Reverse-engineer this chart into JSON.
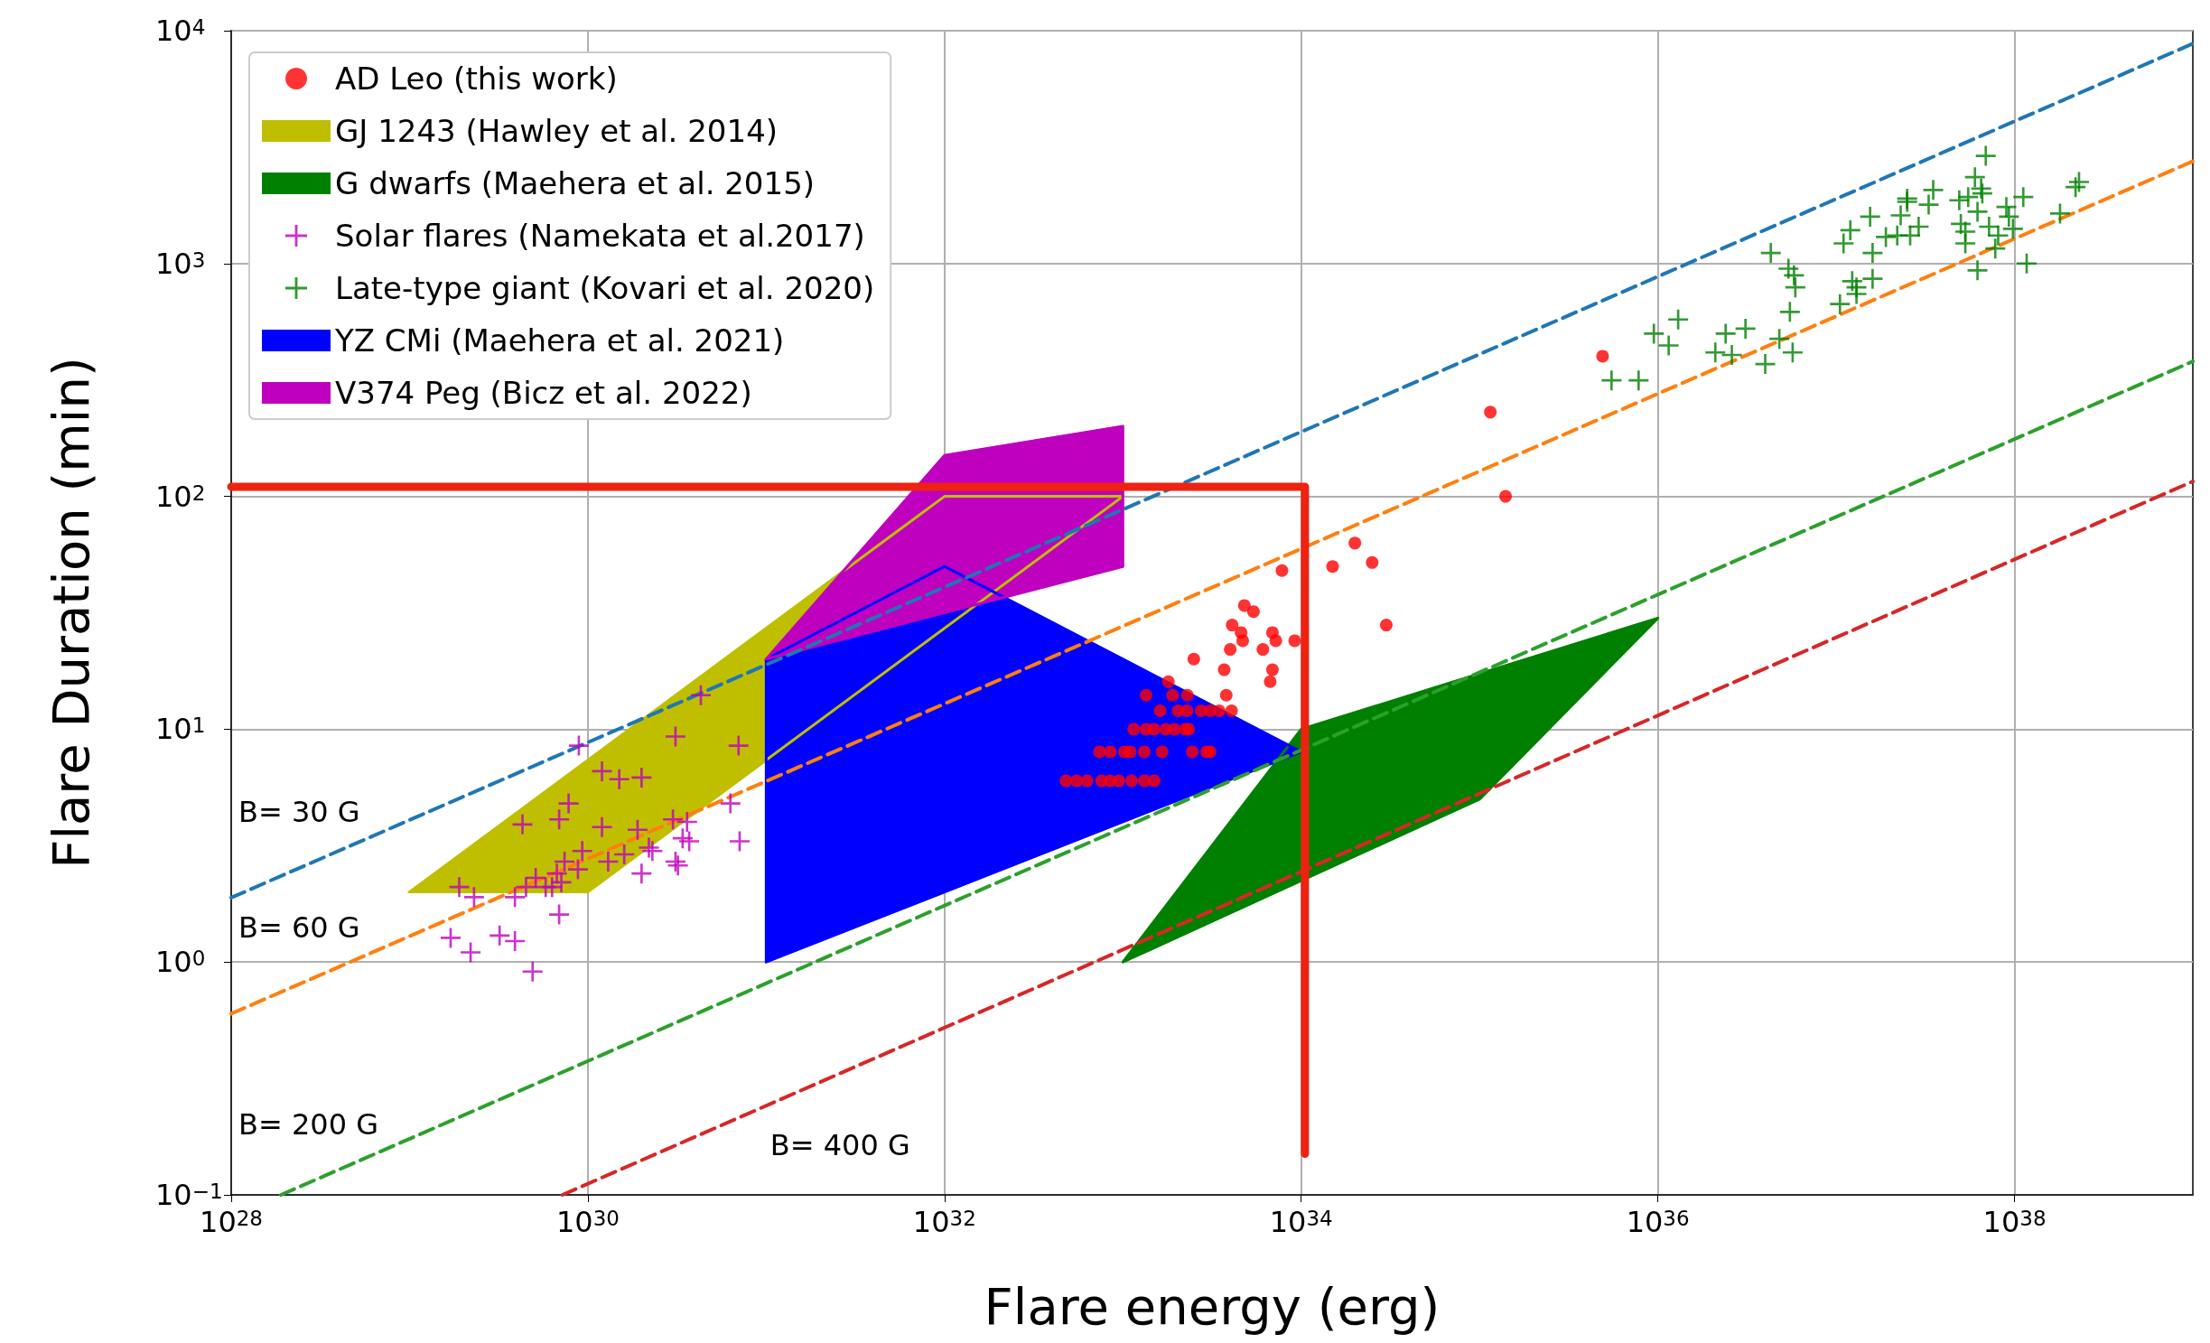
{
  "chart_data": {
    "type": "scatter",
    "xlabel": "Flare energy (erg)",
    "ylabel": "Flare Duration (min)",
    "log": "xy",
    "grid": true,
    "legend": "top left",
    "xlim": [
      1e+28,
      1e+39
    ],
    "ylim": [
      0.1,
      10000
    ],
    "xticks": [
      {
        "value": 1e+28,
        "label": "10$^{28}$"
      },
      {
        "value": 1e+30,
        "label": "10$^{30}$"
      },
      {
        "value": 1e+32,
        "label": "10$^{32}$"
      },
      {
        "value": 1e+34,
        "label": "10$^{34}$"
      },
      {
        "value": 1e+36,
        "label": "10$^{36}$"
      },
      {
        "value": 1e+38,
        "label": "10$^{38}$"
      }
    ],
    "yticks": [
      {
        "value": 0.1,
        "label": "10$^{−1}$"
      },
      {
        "value": 1,
        "label": "10$^{0}$"
      },
      {
        "value": 10,
        "label": "10$^{1}$"
      },
      {
        "value": 100,
        "label": "10$^{2}$"
      },
      {
        "value": 1000,
        "label": "10$^{3}$"
      },
      {
        "value": 10000,
        "label": "10$^{4}$"
      }
    ],
    "series": [
      {
        "name": "AD Leo (this work)",
        "marker": "circle",
        "color": "#ff0000",
        "x": [
          4.9e+35,
          1.15e+35,
          1.4e+35,
          2e+34,
          1.5e+34,
          2.5e+34,
          3e+34,
          7.8e+33,
          4.8e+33,
          5.4e+33,
          4.1e+33,
          4.6e+33,
          4.7e+33,
          6.9e+33,
          7.2e+33,
          9.2e+33,
          4e+33,
          6.1e+33,
          2.5e+33,
          3.7e+33,
          6.9e+33,
          6.7e+33,
          1.8e+33,
          1.35e+33,
          1.9e+33,
          2.3e+33,
          3.8e+33,
          1.62e+33,
          2.04e+33,
          2.29e+33,
          2.75e+33,
          3.09e+33,
          3.47e+33,
          4.07e+33,
          1.15e+33,
          1.35e+33,
          1.5e+33,
          1.74e+33,
          1.95e+33,
          2.24e+33,
          2.34e+33,
          7.4e+32,
          8.5e+32,
          1.02e+33,
          1.1e+33,
          1.32e+33,
          1.66e+33,
          2.45e+33,
          2.95e+33,
          3.09e+33,
          4.8e+32,
          5.5e+32,
          6.3e+32,
          7.6e+32,
          8.5e+32,
          9.5e+32,
          1.12e+33,
          1.32e+33,
          1.5e+33
        ],
        "values": [
          400,
          230,
          100,
          63,
          50,
          52,
          28,
          48,
          34,
          32,
          28,
          26,
          24,
          26,
          24,
          24,
          22,
          22,
          20,
          18,
          18,
          16,
          16,
          14,
          14,
          14,
          14,
          12,
          12,
          12,
          12,
          12,
          12,
          12,
          10,
          10,
          10,
          10,
          10,
          10,
          10,
          8,
          8,
          8,
          8,
          8,
          8,
          8,
          8,
          8,
          6,
          6,
          6,
          6,
          6,
          6,
          6,
          6,
          6
        ]
      },
      {
        "name": "GJ 1243 (Hawley et al. 2014)",
        "type": "area",
        "color": "#bfbf00",
        "x": [
          1e+29,
          1e+30,
          1e+33,
          1e+32
        ],
        "values": [
          2,
          2,
          100,
          100
        ]
      },
      {
        "name": "G dwarfs (Maehera et al. 2015)",
        "type": "area",
        "color": "#008000",
        "x": [
          1e+33,
          1e+34,
          1e+36,
          1e+35
        ],
        "values": [
          1,
          10,
          30,
          5
        ]
      },
      {
        "name": "Solar flares (Namekata et al.2017)",
        "marker": "cross",
        "color": "#bf00bf",
        "x": [
          8.9e+29,
          4.3e+30,
          3.1e+30,
          7e+30,
          1.2e+30,
          1.5e+30,
          2e+30,
          7.8e+29,
          4.3e+29,
          6.9e+29,
          1.2e+30,
          1.9e+30,
          6.3e+30,
          3e+30,
          3.6e+30,
          3.4e+30,
          3.7e+30,
          7.1e+30,
          2.2e+30,
          2.3e+30,
          3.1e+30,
          3.2e+30,
          2e+30,
          1.6e+30,
          1.3e+30,
          9.3e+29,
          8.8e+29,
          7.4e+29,
          6.7e+29,
          5.1e+29,
          4.5e+29,
          5.8e+29,
          6.3e+29,
          7.1e+29,
          3.9e+29,
          1.9e+29,
          2.3e+29,
          6.9e+29,
          1.7e+29,
          2.2e+29,
          3.2e+29,
          3.9e+29,
          4.9e+29
        ],
        "values": [
          8.5,
          14,
          9.3,
          8.5,
          6.6,
          6.1,
          6.2,
          4.8,
          3.9,
          4.1,
          3.8,
          3.7,
          4.8,
          4.1,
          4,
          3.4,
          3.3,
          3.3,
          3.1,
          3,
          2.7,
          2.6,
          2.4,
          2.9,
          2.7,
          3,
          2.5,
          2.7,
          2.4,
          2.3,
          2.1,
          2.1,
          2.1,
          2.2,
          1.9,
          2.1,
          1.9,
          1.6,
          1.27,
          1.1,
          1.3,
          1.23,
          0.91
        ]
      },
      {
        "name": "Late-type giant (Kovari et al. 2020)",
        "marker": "cross",
        "color": "#008000",
        "x": [
          6.9e+37,
          6e+37,
          6.5e+37,
          6.6e+37,
          4.9e+37,
          5.5e+37,
          3.5e+37,
          3.3e+37,
          2.5e+37,
          2.5e+37,
          2.3e+37,
          6.2e+37,
          9e+37,
          1.12e+38,
          2.3e+38,
          2.2e+38,
          1.8e+38,
          9.3e+37,
          5e+37,
          5.3e+37,
          5.3e+37,
          7.2e+37,
          9.8e+37,
          8.1e+37,
          7.8e+37,
          6.2e+37,
          1.17e+38,
          2.9e+37,
          2.6e+37,
          2.2e+37,
          1.9e+37,
          1.55e+37,
          1.2e+37,
          1.1e+37,
          1.6e+37,
          4.3e+36,
          5.4e+36,
          5.8e+36,
          5.9e+36,
          5.5e+36,
          1.23e+37,
          1.3e+37,
          1.6e+37,
          1.3e+37,
          1.05e+37,
          4.8e+36,
          5.7e+36,
          4e+36,
          3.1e+36,
          2.4e+36,
          2.6e+36,
          2.1e+36,
          1.3e+36,
          9.5e+35,
          1.15e+36,
          5.5e+35,
          7.8e+35
        ],
        "values": [
          2900,
          2350,
          2100,
          2000,
          1870,
          1930,
          2070,
          1790,
          1900,
          1840,
          1610,
          1670,
          1750,
          1930,
          2240,
          2130,
          1640,
          1590,
          1480,
          1370,
          1220,
          1440,
          1410,
          1320,
          1160,
          935,
          1000,
          1440,
          1320,
          1320,
          1300,
          1590,
          1390,
          1220,
          1110,
          1110,
          950,
          890,
          790,
          620,
          840,
          790,
          860,
          740,
          670,
          475,
          415,
          370,
          525,
          500,
          405,
          415,
          575,
          500,
          445,
          315,
          315
        ]
      },
      {
        "name": "YZ CMi (Maehera et al. 2021)",
        "type": "area",
        "color": "#0000ff",
        "x": [
          1e+31,
          1e+32,
          1e+34,
          1e+31
        ],
        "values": [
          20,
          50,
          8,
          1
        ]
      },
      {
        "name": "V374 Peg (Bicz et al. 2022)",
        "type": "area",
        "color": "#bf00bf",
        "x": [
          1e+31,
          1e+32,
          1e+33,
          1e+33
        ],
        "values": [
          20,
          150,
          200,
          50
        ]
      },
      {
        "name": "B= 30 G",
        "type": "line",
        "line_style": "dashed",
        "color": "#1f77b4",
        "x": [
          1e+28,
          1e+39
        ],
        "values": [
          1.89,
          8800
        ]
      },
      {
        "name": "B= 60 G",
        "type": "line",
        "line_style": "dashed",
        "color": "#ff7f0e",
        "x": [
          1e+28,
          1e+39
        ],
        "values": [
          0.6,
          2750
        ]
      },
      {
        "name": "B= 200 G",
        "type": "line",
        "line_style": "dashed",
        "color": "#2ca02c",
        "x": [
          1.9e+28,
          1e+39
        ],
        "values": [
          0.1,
          380
        ]
      },
      {
        "name": "B= 400 G",
        "type": "line",
        "line_style": "dashed",
        "color": "#d62728",
        "x": [
          7.2e+29,
          1e+39
        ],
        "values": [
          0.1,
          116
        ]
      },
      {
        "type": "line",
        "line_style": "solid",
        "color": "#ee2211",
        "x": [
          1e+28,
          1.05e+34,
          1.05e+34
        ],
        "values": [
          110,
          110,
          0.15
        ]
      }
    ]
  }
}
